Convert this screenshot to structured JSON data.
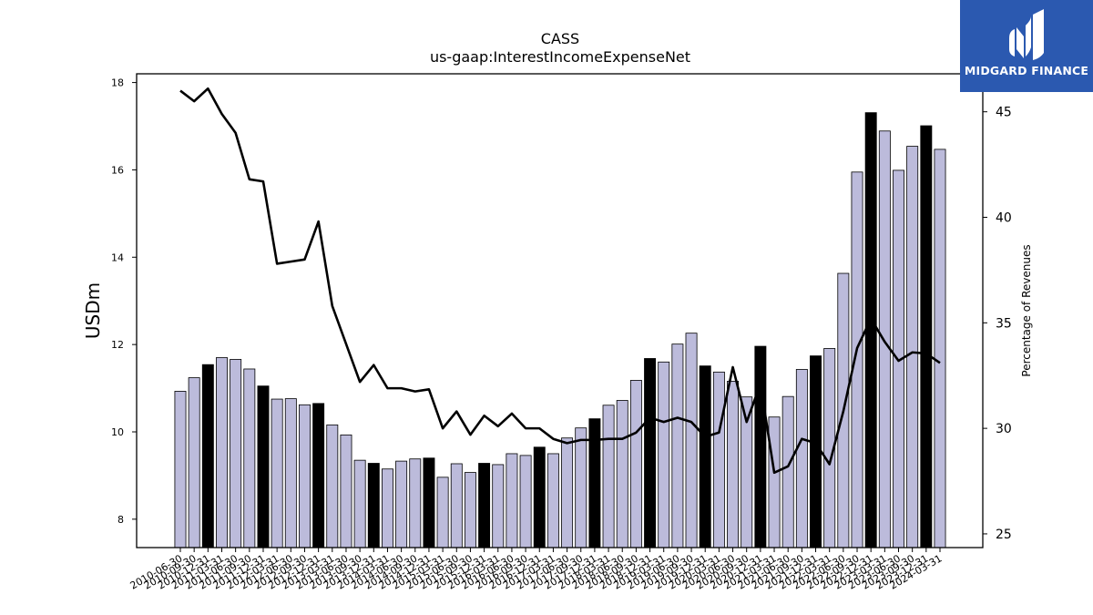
{
  "chart_data": {
    "type": "bar",
    "title": "CASS",
    "subtitle": "us-gaap:InterestIncomeExpenseNet",
    "ylabel": "USDm",
    "y2label": "Percentage of Revenues",
    "ylim": [
      7.35,
      18.2
    ],
    "y2lim": [
      24.35,
      46.8
    ],
    "yticks": [
      8,
      10,
      12,
      14,
      16,
      18
    ],
    "y2ticks": [
      25,
      30,
      35,
      40,
      45
    ],
    "categories": [
      "2010-06-30",
      "2010-09-30",
      "2010-12-31",
      "2011-03-31",
      "2011-06-30",
      "2011-09-30",
      "2011-12-31",
      "2012-03-31",
      "2012-06-30",
      "2012-09-30",
      "2012-12-31",
      "2013-03-31",
      "2013-06-30",
      "2013-09-30",
      "2013-12-31",
      "2014-03-31",
      "2014-06-30",
      "2014-09-30",
      "2014-12-31",
      "2015-03-31",
      "2015-06-30",
      "2015-09-30",
      "2015-12-31",
      "2016-03-31",
      "2016-06-30",
      "2016-09-30",
      "2016-12-31",
      "2017-03-31",
      "2017-06-30",
      "2017-09-30",
      "2017-12-31",
      "2018-03-31",
      "2018-06-30",
      "2018-09-30",
      "2018-12-31",
      "2019-03-31",
      "2019-06-30",
      "2019-09-30",
      "2019-12-31",
      "2020-03-31",
      "2020-06-30",
      "2020-09-30",
      "2020-12-31",
      "2021-03-31",
      "2021-06-30",
      "2021-09-30",
      "2021-12-31",
      "2022-03-31",
      "2022-06-30",
      "2022-09-30",
      "2022-12-31",
      "2023-03-31",
      "2023-06-30",
      "2023-09-30",
      "2023-12-31",
      "2024-03-31"
    ],
    "series": [
      {
        "name": "InterestIncomeExpenseNet",
        "type": "bar",
        "values": [
          10.93,
          11.24,
          11.54,
          11.7,
          11.66,
          11.44,
          11.05,
          10.75,
          10.76,
          10.62,
          10.65,
          10.16,
          9.93,
          9.35,
          9.28,
          9.15,
          9.33,
          9.38,
          9.4,
          8.96,
          9.27,
          9.07,
          9.28,
          9.25,
          9.5,
          9.46,
          9.65,
          9.5,
          9.86,
          10.09,
          10.3,
          10.61,
          10.72,
          11.18,
          11.68,
          11.6,
          12.01,
          12.26,
          11.51,
          11.37,
          11.16,
          10.8,
          11.96,
          10.34,
          10.81,
          11.43,
          11.74,
          11.91,
          13.63,
          15.95,
          17.31,
          16.89,
          15.99,
          16.54,
          17.01,
          16.47
        ],
        "highlight": [
          false,
          false,
          true,
          false,
          false,
          false,
          true,
          false,
          false,
          false,
          true,
          false,
          false,
          false,
          true,
          false,
          false,
          false,
          true,
          false,
          false,
          false,
          true,
          false,
          false,
          false,
          true,
          false,
          false,
          false,
          true,
          false,
          false,
          false,
          true,
          false,
          false,
          false,
          true,
          false,
          false,
          false,
          true,
          false,
          false,
          false,
          true,
          false,
          false,
          false,
          true,
          false,
          false,
          false,
          true,
          false
        ]
      },
      {
        "name": "Percentage of Revenues",
        "type": "line",
        "axis": "right",
        "values": [
          46.0,
          45.5,
          46.1,
          44.9,
          44.0,
          41.8,
          41.7,
          37.8,
          37.9,
          38.0,
          39.8,
          35.8,
          34.0,
          32.2,
          33.0,
          31.9,
          31.9,
          31.75,
          31.85,
          30.0,
          30.8,
          29.7,
          30.6,
          30.1,
          30.7,
          30.0,
          30.0,
          29.5,
          29.3,
          29.45,
          29.45,
          29.5,
          29.5,
          29.8,
          30.5,
          30.3,
          30.5,
          30.3,
          29.6,
          29.8,
          32.9,
          30.3,
          32.1,
          27.9,
          28.2,
          29.5,
          29.3,
          28.3,
          30.8,
          33.8,
          35.2,
          34.1,
          33.2,
          33.6,
          33.55,
          33.1
        ]
      }
    ],
    "colors": {
      "bar": "#bcbbdb",
      "bar_highlight": "#000000",
      "bar_edge": "#000000",
      "line": "#000000"
    },
    "grid": false,
    "legend": "none"
  },
  "logo": {
    "text": "MIDGARD FINANCE",
    "icon": "midgard-logo-icon",
    "background": "#2b59b0"
  }
}
